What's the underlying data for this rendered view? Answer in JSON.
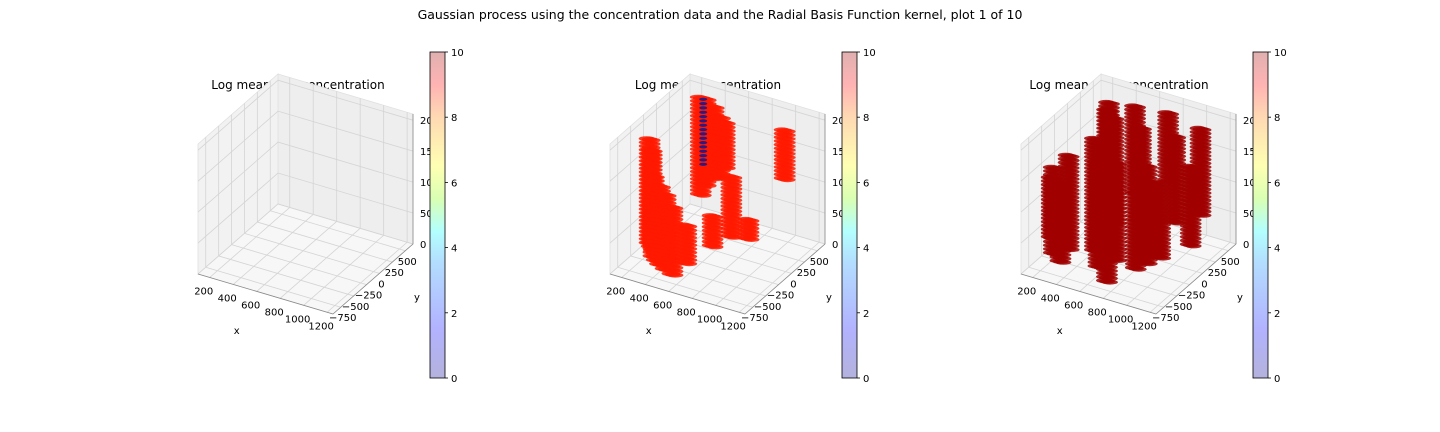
{
  "suptitle": "Gaussian process using the  concentration data and the Radial Basis Function kernel, plot 1 of 10",
  "chart_data": [
    {
      "type": "scatter",
      "projection": "3d",
      "title": "Log mean - 2σ concentration",
      "xlabel": "x",
      "ylabel": "y",
      "zlabel": "",
      "xticks": [
        "200",
        "400",
        "600",
        "800",
        "1000",
        "1200"
      ],
      "yticks": [
        "−750",
        "−500",
        "−250",
        "0",
        "250",
        "500"
      ],
      "zticks": [
        "0",
        "50",
        "100",
        "150",
        "200"
      ],
      "xlim": [
        100,
        1250
      ],
      "ylim": [
        -900,
        650
      ],
      "zlim": [
        0,
        210
      ],
      "colorbar": {
        "ticks": [
          "0",
          "2",
          "4",
          "6",
          "8",
          "10"
        ],
        "range": [
          0,
          10
        ],
        "colormap": "jet"
      },
      "grid": true,
      "points": []
    },
    {
      "type": "scatter",
      "projection": "3d",
      "title": "Log mean concentration",
      "xlabel": "x",
      "ylabel": "y",
      "zlabel": "",
      "xticks": [
        "200",
        "400",
        "600",
        "800",
        "1000",
        "1200"
      ],
      "yticks": [
        "−750",
        "−500",
        "−250",
        "0",
        "250",
        "500"
      ],
      "zticks": [
        "0",
        "50",
        "100",
        "150",
        "200"
      ],
      "xlim": [
        100,
        1250
      ],
      "ylim": [
        -900,
        650
      ],
      "zlim": [
        0,
        210
      ],
      "colorbar": {
        "ticks": [
          "0",
          "2",
          "4",
          "6",
          "8",
          "10"
        ],
        "range": [
          0,
          10
        ],
        "colormap": "jet"
      },
      "grid": true,
      "marker_color": "#ff1a00",
      "point_columns": [
        {
          "x": 280,
          "y": 450,
          "z0": 40,
          "z1": 200
        },
        {
          "x": 330,
          "y": 430,
          "z0": 60,
          "z1": 200
        },
        {
          "x": 420,
          "y": 380,
          "z0": 80,
          "z1": 195
        },
        {
          "x": 500,
          "y": 320,
          "z0": 90,
          "z1": 190
        },
        {
          "x": 550,
          "y": 300,
          "z0": 110,
          "z1": 185
        },
        {
          "x": 130,
          "y": -200,
          "z0": 0,
          "z1": 170
        },
        {
          "x": 170,
          "y": -250,
          "z0": 0,
          "z1": 160
        },
        {
          "x": 210,
          "y": -300,
          "z0": 0,
          "z1": 120
        },
        {
          "x": 250,
          "y": -400,
          "z0": 0,
          "z1": 100
        },
        {
          "x": 300,
          "y": -450,
          "z0": 0,
          "z1": 110
        },
        {
          "x": 350,
          "y": -500,
          "z0": 0,
          "z1": 130
        },
        {
          "x": 420,
          "y": -550,
          "z0": 0,
          "z1": 120
        },
        {
          "x": 500,
          "y": -600,
          "z0": 0,
          "z1": 110
        },
        {
          "x": 640,
          "y": -650,
          "z0": 30,
          "z1": 90
        },
        {
          "x": 820,
          "y": -550,
          "z0": 60,
          "z1": 110
        },
        {
          "x": 870,
          "y": -300,
          "z0": 60,
          "z1": 160
        },
        {
          "x": 950,
          "y": -150,
          "z0": 50,
          "z1": 80
        },
        {
          "x": 1060,
          "y": 300,
          "z0": 120,
          "z1": 200
        }
      ],
      "dark_column": {
        "x": 300,
        "y": 450,
        "z0": 90,
        "z1": 200,
        "color": "#1a1a8c"
      }
    },
    {
      "type": "scatter",
      "projection": "3d",
      "title": "Log mean + 2σ concentration",
      "xlabel": "x",
      "ylabel": "y",
      "zlabel": "",
      "xticks": [
        "200",
        "400",
        "600",
        "800",
        "1000",
        "1200"
      ],
      "yticks": [
        "−750",
        "−500",
        "−250",
        "0",
        "250",
        "500"
      ],
      "zticks": [
        "0",
        "50",
        "100",
        "150",
        "200"
      ],
      "xlim": [
        100,
        1250
      ],
      "ylim": [
        -900,
        650
      ],
      "zlim": [
        0,
        210
      ],
      "colorbar": {
        "ticks": [
          "0",
          "2",
          "4",
          "6",
          "8",
          "10"
        ],
        "range": [
          0,
          10
        ],
        "colormap": "jet"
      },
      "grid": true,
      "marker_color": "#a00000",
      "point_columns": [
        {
          "x": 120,
          "y": -350,
          "z0": 20,
          "z1": 120
        },
        {
          "x": 160,
          "y": -400,
          "z0": 0,
          "z1": 140
        },
        {
          "x": 220,
          "y": -250,
          "z0": 0,
          "z1": 150
        },
        {
          "x": 260,
          "y": -500,
          "z0": 0,
          "z1": 130
        },
        {
          "x": 300,
          "y": 350,
          "z0": 40,
          "z1": 200
        },
        {
          "x": 350,
          "y": 200,
          "z0": 0,
          "z1": 200
        },
        {
          "x": 400,
          "y": -150,
          "z0": 0,
          "z1": 180
        },
        {
          "x": 450,
          "y": 100,
          "z0": 30,
          "z1": 200
        },
        {
          "x": 500,
          "y": 400,
          "z0": 60,
          "z1": 200
        },
        {
          "x": 540,
          "y": -400,
          "z0": 0,
          "z1": 170
        },
        {
          "x": 600,
          "y": -200,
          "z0": 0,
          "z1": 160
        },
        {
          "x": 660,
          "y": 150,
          "z0": 40,
          "z1": 190
        },
        {
          "x": 700,
          "y": -600,
          "z0": 0,
          "z1": 140
        },
        {
          "x": 760,
          "y": 450,
          "z0": 90,
          "z1": 200
        },
        {
          "x": 820,
          "y": -100,
          "z0": 0,
          "z1": 160
        },
        {
          "x": 880,
          "y": -450,
          "z0": 20,
          "z1": 140
        },
        {
          "x": 930,
          "y": 200,
          "z0": 50,
          "z1": 190
        },
        {
          "x": 1000,
          "y": -250,
          "z0": 30,
          "z1": 150
        },
        {
          "x": 1080,
          "y": 350,
          "z0": 60,
          "z1": 200
        },
        {
          "x": 1150,
          "y": 0,
          "z0": 40,
          "z1": 170
        }
      ]
    }
  ]
}
